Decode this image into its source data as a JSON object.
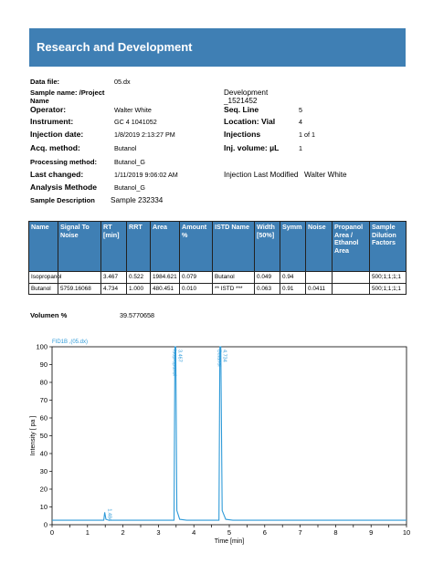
{
  "header": {
    "title": "Research and Development"
  },
  "info": {
    "data_file_label": "Data file:",
    "data_file": "05.dx",
    "sample_name_label": "Sample name: /Project Name",
    "development_label": "Development",
    "development_value": "_1521452",
    "operator_label": "Operator:",
    "operator": "Walter White",
    "seq_line_label": "Seq. Line",
    "seq_line": "5",
    "instrument_label": "Instrument:",
    "instrument": "GC 4 1041052",
    "location_label": "Location:",
    "vial_label": "Vial",
    "vial": "4",
    "injection_date_label": "Injection date:",
    "injection_date": "1/8/2019 2:13:27 PM",
    "injections_label": "Injections",
    "injections": "1 of 1",
    "acq_method_label": "Acq. method:",
    "acq_method": "Butanol",
    "inj_volume_label": "Inj. volume: µL",
    "inj_volume": "1",
    "processing_method_label": "Processing method:",
    "processing_method": "Butanol_G",
    "last_changed_label": "Last changed:",
    "last_changed": "1/11/2019 9:06:02 AM",
    "injection_last_modified_label": "Injection Last Modified",
    "injection_last_modified": "Walter White",
    "analysis_method_label": "Analysis Methode",
    "analysis_method": "Butanol_G",
    "sample_description_label": "Sample Description",
    "sample_description": "Sample 232334"
  },
  "table": {
    "headers": [
      "Name",
      "Signal To Noise",
      "RT [min]",
      "RRT",
      "Area",
      "Amount %",
      "ISTD Name",
      "Width [50%]",
      "Symm",
      "Noise",
      "Propanol Area / Ethanol Area",
      "Sample Dilution Factors"
    ],
    "rows": [
      [
        "Isopropanol",
        "",
        "3.467",
        "0.522",
        "1984.621",
        "0.079",
        "Butanol",
        "0.049",
        "0.94",
        "",
        "",
        "500;1;1;1;1"
      ],
      [
        "Butanol",
        "5759.16068",
        "4.734",
        "1.000",
        "480.451",
        "0.010",
        "** ISTD ***",
        "0.063",
        "0.91",
        "0.0411",
        "",
        "500;1;1;1;1"
      ]
    ]
  },
  "volumen": {
    "label": "Volumen %",
    "value": "39.5770658"
  },
  "chart_data": {
    "type": "line",
    "title": "FID1B ,(05.dx)",
    "xlabel": "Time [min]",
    "ylabel": "Intensity [ pa ]",
    "xlim": [
      0,
      10
    ],
    "ylim": [
      0,
      100
    ],
    "xticks": [
      0,
      0.5,
      1,
      1.5,
      2,
      2.5,
      3,
      3.5,
      4,
      4.5,
      5,
      5.5,
      6,
      6.5,
      7,
      7.5,
      8,
      8.5,
      9,
      9.5,
      10
    ],
    "yticks": [
      0,
      10,
      20,
      30,
      40,
      50,
      60,
      70,
      80,
      90,
      100
    ],
    "grid": false,
    "color": "#2e9ad8",
    "baseline": 2.5,
    "peaks": [
      {
        "rt": 1.484,
        "height": 7,
        "label": "1.484"
      },
      {
        "rt": 3.467,
        "height": 100,
        "label": "3.467",
        "name": "Isopropanol"
      },
      {
        "rt": 4.734,
        "height": 100,
        "label": "4.734",
        "name": "Butanol"
      }
    ],
    "series": [
      {
        "values": [
          [
            0,
            2.5
          ],
          [
            1.46,
            2.5
          ],
          [
            1.484,
            7
          ],
          [
            1.52,
            3
          ],
          [
            1.6,
            2.5
          ],
          [
            3.44,
            2.5
          ],
          [
            3.467,
            100
          ],
          [
            3.49,
            100
          ],
          [
            3.52,
            8
          ],
          [
            3.6,
            3
          ],
          [
            3.8,
            2.5
          ],
          [
            4.71,
            2.5
          ],
          [
            4.734,
            100
          ],
          [
            4.76,
            100
          ],
          [
            4.8,
            8
          ],
          [
            4.9,
            3
          ],
          [
            5.1,
            2.5
          ],
          [
            10,
            2.5
          ]
        ]
      }
    ]
  }
}
